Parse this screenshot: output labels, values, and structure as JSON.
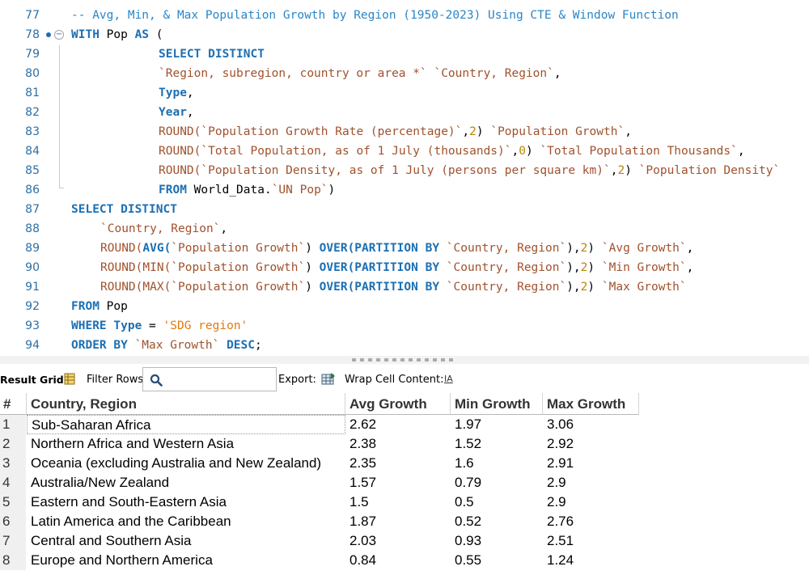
{
  "editor": {
    "lines": [
      {
        "num": "77",
        "indent": 0,
        "tokens": [
          {
            "t": "-- Avg, Min, & Max Population Growth by Region (1950-2023) Using CTE & Window Function",
            "c": "cm"
          }
        ]
      },
      {
        "num": "78",
        "indent": 0,
        "tokens": [
          {
            "t": "WITH",
            "c": "kw"
          },
          {
            "t": " Pop ",
            "c": "plain"
          },
          {
            "t": "AS",
            "c": "kw"
          },
          {
            "t": " (",
            "c": "plain"
          }
        ]
      },
      {
        "num": "79",
        "indent": 15,
        "tokens": [
          {
            "t": "SELECT DISTINCT",
            "c": "kw"
          }
        ]
      },
      {
        "num": "80",
        "indent": 15,
        "tokens": [
          {
            "t": "`Region, subregion, country or area *`",
            "c": "str"
          },
          {
            "t": " ",
            "c": "plain"
          },
          {
            "t": "`Country, Region`",
            "c": "str"
          },
          {
            "t": ",",
            "c": "plain"
          }
        ]
      },
      {
        "num": "81",
        "indent": 15,
        "tokens": [
          {
            "t": "Type",
            "c": "kw"
          },
          {
            "t": ",",
            "c": "plain"
          }
        ]
      },
      {
        "num": "82",
        "indent": 15,
        "tokens": [
          {
            "t": "Year",
            "c": "kw"
          },
          {
            "t": ",",
            "c": "plain"
          }
        ]
      },
      {
        "num": "83",
        "indent": 15,
        "tokens": [
          {
            "t": "ROUND(",
            "c": "str"
          },
          {
            "t": "`Population Growth Rate (percentage)`",
            "c": "str"
          },
          {
            "t": ",",
            "c": "plain"
          },
          {
            "t": "2",
            "c": "num"
          },
          {
            "t": ") ",
            "c": "plain"
          },
          {
            "t": "`Population Growth`",
            "c": "str"
          },
          {
            "t": ",",
            "c": "plain"
          }
        ]
      },
      {
        "num": "84",
        "indent": 15,
        "tokens": [
          {
            "t": "ROUND(",
            "c": "str"
          },
          {
            "t": "`Total Population, as of 1 July (thousands)`",
            "c": "str"
          },
          {
            "t": ",",
            "c": "plain"
          },
          {
            "t": "0",
            "c": "num"
          },
          {
            "t": ") ",
            "c": "plain"
          },
          {
            "t": "`Total Population Thousands`",
            "c": "str"
          },
          {
            "t": ",",
            "c": "plain"
          }
        ]
      },
      {
        "num": "85",
        "indent": 15,
        "tokens": [
          {
            "t": "ROUND(",
            "c": "str"
          },
          {
            "t": "`Population Density, as of 1 July (persons per square km)`",
            "c": "str"
          },
          {
            "t": ",",
            "c": "plain"
          },
          {
            "t": "2",
            "c": "num"
          },
          {
            "t": ") ",
            "c": "plain"
          },
          {
            "t": "`Population Density`",
            "c": "str"
          }
        ]
      },
      {
        "num": "86",
        "indent": 15,
        "tokens": [
          {
            "t": "FROM",
            "c": "kw"
          },
          {
            "t": " World_Data.",
            "c": "plain"
          },
          {
            "t": "`UN Pop`",
            "c": "str"
          },
          {
            "t": ")",
            "c": "plain"
          }
        ]
      },
      {
        "num": "87",
        "indent": 0,
        "tokens": [
          {
            "t": "SELECT DISTINCT",
            "c": "kw"
          }
        ]
      },
      {
        "num": "88",
        "indent": 5,
        "tokens": [
          {
            "t": "`Country, Region`",
            "c": "str"
          },
          {
            "t": ",",
            "c": "plain"
          }
        ]
      },
      {
        "num": "89",
        "indent": 5,
        "tokens": [
          {
            "t": "ROUND(",
            "c": "str"
          },
          {
            "t": "AVG(",
            "c": "kw"
          },
          {
            "t": "`Population Growth`",
            "c": "str"
          },
          {
            "t": ") ",
            "c": "plain"
          },
          {
            "t": "OVER(PARTITION BY",
            "c": "kw"
          },
          {
            "t": " ",
            "c": "plain"
          },
          {
            "t": "`Country, Region`",
            "c": "str"
          },
          {
            "t": "),",
            "c": "plain"
          },
          {
            "t": "2",
            "c": "num"
          },
          {
            "t": ") ",
            "c": "plain"
          },
          {
            "t": "`Avg Growth`",
            "c": "str"
          },
          {
            "t": ",",
            "c": "plain"
          }
        ]
      },
      {
        "num": "90",
        "indent": 5,
        "tokens": [
          {
            "t": "ROUND(",
            "c": "str"
          },
          {
            "t": "MIN(",
            "c": "str"
          },
          {
            "t": "`Population Growth`",
            "c": "str"
          },
          {
            "t": ") ",
            "c": "plain"
          },
          {
            "t": "OVER(PARTITION BY",
            "c": "kw"
          },
          {
            "t": " ",
            "c": "plain"
          },
          {
            "t": "`Country, Region`",
            "c": "str"
          },
          {
            "t": "),",
            "c": "plain"
          },
          {
            "t": "2",
            "c": "num"
          },
          {
            "t": ") ",
            "c": "plain"
          },
          {
            "t": "`Min Growth`",
            "c": "str"
          },
          {
            "t": ",",
            "c": "plain"
          }
        ]
      },
      {
        "num": "91",
        "indent": 5,
        "tokens": [
          {
            "t": "ROUND(",
            "c": "str"
          },
          {
            "t": "MAX(",
            "c": "str"
          },
          {
            "t": "`Population Growth`",
            "c": "str"
          },
          {
            "t": ") ",
            "c": "plain"
          },
          {
            "t": "OVER(PARTITION BY",
            "c": "kw"
          },
          {
            "t": " ",
            "c": "plain"
          },
          {
            "t": "`Country, Region`",
            "c": "str"
          },
          {
            "t": "),",
            "c": "plain"
          },
          {
            "t": "2",
            "c": "num"
          },
          {
            "t": ") ",
            "c": "plain"
          },
          {
            "t": "`Max Growth`",
            "c": "str"
          }
        ]
      },
      {
        "num": "92",
        "indent": 0,
        "tokens": [
          {
            "t": "FROM",
            "c": "kw"
          },
          {
            "t": " Pop",
            "c": "plain"
          }
        ]
      },
      {
        "num": "93",
        "indent": 0,
        "tokens": [
          {
            "t": "WHERE",
            "c": "kw"
          },
          {
            "t": " ",
            "c": "plain"
          },
          {
            "t": "Type",
            "c": "kw"
          },
          {
            "t": " = ",
            "c": "plain"
          },
          {
            "t": "'SDG region'",
            "c": "sq"
          }
        ]
      },
      {
        "num": "94",
        "indent": 0,
        "tokens": [
          {
            "t": "ORDER BY",
            "c": "kw"
          },
          {
            "t": " ",
            "c": "plain"
          },
          {
            "t": "`Max Growth`",
            "c": "str"
          },
          {
            "t": " ",
            "c": "plain"
          },
          {
            "t": "DESC",
            "c": "kw"
          },
          {
            "t": ";",
            "c": "plain"
          }
        ]
      }
    ]
  },
  "toolbar": {
    "result_grid_label": "Result Grid",
    "filter_rows_label": "Filter Rows:",
    "filter_value": "",
    "export_label": "Export:",
    "wrap_label": "Wrap Cell Content:",
    "wrap_icon_glyph": "IA"
  },
  "grid": {
    "columns": [
      "#",
      "Country, Region",
      "Avg Growth",
      "Min Growth",
      "Max Growth"
    ],
    "rows": [
      [
        "1",
        "Sub-Saharan Africa",
        "2.62",
        "1.97",
        "3.06"
      ],
      [
        "2",
        "Northern Africa and Western Asia",
        "2.38",
        "1.52",
        "2.92"
      ],
      [
        "3",
        "Oceania (excluding Australia and New Zealand)",
        "2.35",
        "1.6",
        "2.91"
      ],
      [
        "4",
        "Australia/New Zealand",
        "1.57",
        "0.79",
        "2.9"
      ],
      [
        "5",
        "Eastern and South-Eastern Asia",
        "1.5",
        "0.5",
        "2.9"
      ],
      [
        "6",
        "Latin America and the Caribbean",
        "1.87",
        "0.52",
        "2.76"
      ],
      [
        "7",
        "Central and Southern Asia",
        "2.03",
        "0.93",
        "2.51"
      ],
      [
        "8",
        "Europe and Northern America",
        "0.84",
        "0.55",
        "1.24"
      ]
    ]
  },
  "colors": {
    "keyword": "#1d6fb3",
    "string": "#a0522d",
    "number": "#b8860b",
    "comment": "#2a86c8",
    "line_number": "#2c6fa6"
  }
}
